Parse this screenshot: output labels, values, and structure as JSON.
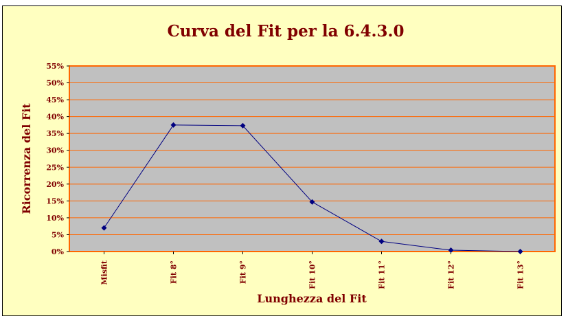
{
  "chart_data": {
    "type": "line",
    "title": "Curva del Fit per la 6.4.3.0",
    "xlabel": "Lunghezza del Fit",
    "ylabel": "Ricorrenza del Fit",
    "categories": [
      "Misfit",
      "Fit 8°",
      "Fit 9°",
      "Fit 10°",
      "Fit 11°",
      "Fit 12°",
      "Fit 13°"
    ],
    "series": [
      {
        "values": [
          7,
          37.5,
          37.3,
          14.7,
          3.0,
          0.4,
          0.0
        ]
      }
    ],
    "y_unit": "%",
    "ylim": [
      0,
      55
    ],
    "y_ticks": [
      0,
      5,
      10,
      15,
      20,
      25,
      30,
      35,
      40,
      45,
      50,
      55
    ],
    "grid": true,
    "legend": "none"
  },
  "colors": {
    "background": "#ffffc0",
    "plot_area": "#c0c0c0",
    "gridline": "#ff6600",
    "plot_border": "#ff6600",
    "line": "#000080",
    "text": "#800000"
  }
}
